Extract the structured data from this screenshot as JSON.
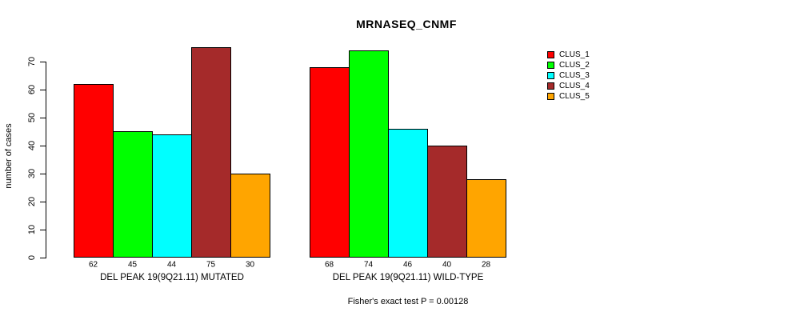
{
  "chart_data": {
    "type": "bar",
    "title": "MRNASEQ_CNMF",
    "ylabel": "number of cases",
    "xlabel": "",
    "ylim": [
      0,
      70
    ],
    "y_ticks": [
      0,
      10,
      20,
      30,
      40,
      50,
      60,
      70
    ],
    "grid": false,
    "legend_position": "right",
    "series_labels": [
      "CLUS_1",
      "CLUS_2",
      "CLUS_3",
      "CLUS_4",
      "CLUS_5"
    ],
    "series_colors": [
      "#ff0000",
      "#00ff00",
      "#00ffff",
      "#a52a2a",
      "#ffa500"
    ],
    "groups": [
      {
        "label": "DEL PEAK 19(9Q21.11) MUTATED",
        "values": [
          62,
          45,
          44,
          75,
          30
        ]
      },
      {
        "label": "DEL PEAK 19(9Q21.11) WILD-TYPE",
        "values": [
          68,
          74,
          46,
          40,
          28
        ]
      }
    ],
    "footnote": "Fisher's exact test P = 0.00128",
    "colors": {
      "background": "#ffffff",
      "axis": "#000000",
      "text": "#000000"
    }
  }
}
